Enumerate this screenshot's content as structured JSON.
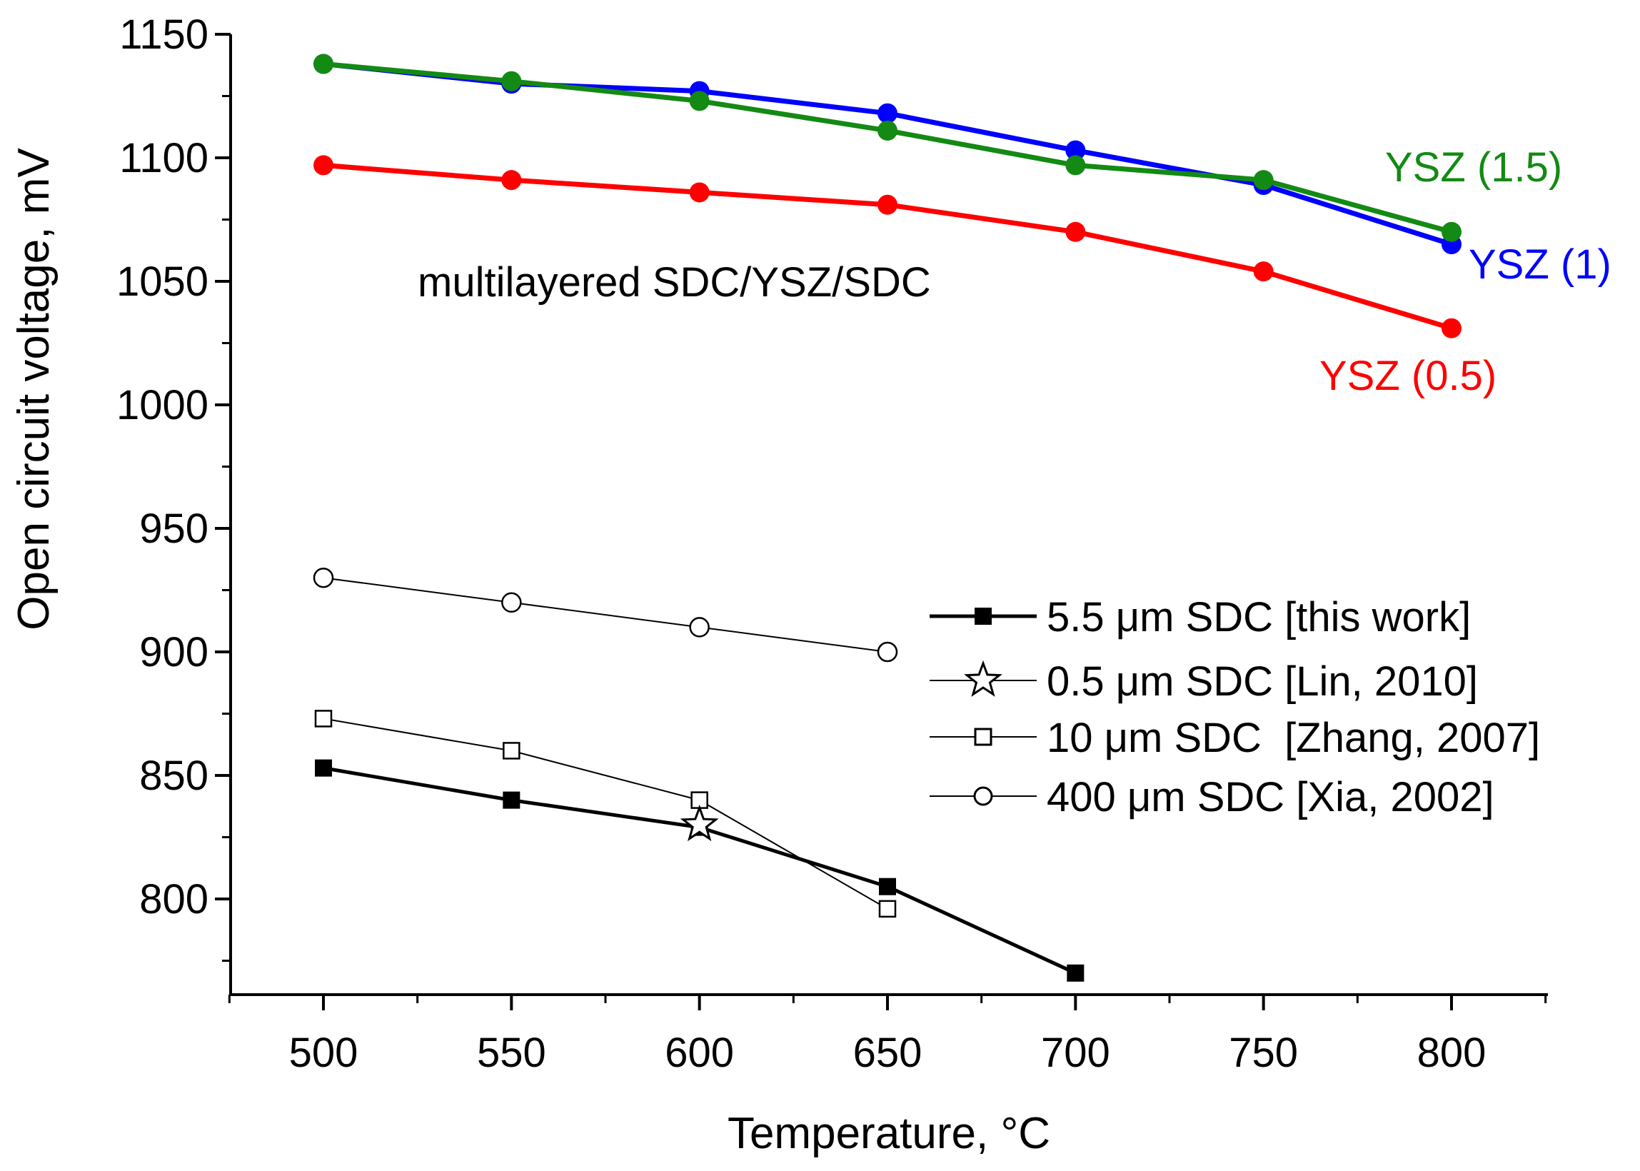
{
  "chart_data": {
    "type": "line",
    "title": "",
    "xlabel": "Temperature, °C",
    "ylabel": "Open circuit voltage, mV",
    "xlim": [
      475,
      825
    ],
    "ylim": [
      760,
      1150
    ],
    "x_ticks": [
      500,
      550,
      600,
      650,
      700,
      750,
      800
    ],
    "x_tick_labels": [
      "500",
      "550",
      "600",
      "650",
      "700",
      "750",
      "800"
    ],
    "y_ticks": [
      800,
      850,
      900,
      950,
      1000,
      1050,
      1100,
      1150
    ],
    "y_tick_labels": [
      "800",
      "850",
      "900",
      "950",
      "1000",
      "1050",
      "1100",
      "1150"
    ],
    "annotation": "multilayered SDC/YSZ/SDC",
    "series": [
      {
        "name": "YSZ (1)",
        "color": "#0000ff",
        "marker": "filled-circle",
        "x": [
          500,
          550,
          600,
          650,
          700,
          750,
          800
        ],
        "values": [
          1138,
          1130,
          1127,
          1118,
          1103,
          1089,
          1065
        ]
      },
      {
        "name": "YSZ (1.5)",
        "color": "#138a13",
        "marker": "filled-circle",
        "x": [
          500,
          550,
          600,
          650,
          700,
          750,
          800
        ],
        "values": [
          1138,
          1131,
          1123,
          1111,
          1097,
          1091,
          1070
        ]
      },
      {
        "name": "YSZ (0.5)",
        "color": "#ff0000",
        "marker": "filled-circle",
        "x": [
          500,
          550,
          600,
          650,
          700,
          750,
          800
        ],
        "values": [
          1097,
          1091,
          1086,
          1081,
          1070,
          1054,
          1031
        ]
      },
      {
        "name": "400 μm SDC [Xia, 2002]",
        "color": "#000000",
        "marker": "open-circle",
        "x": [
          500,
          550,
          600,
          650
        ],
        "values": [
          930,
          920,
          910,
          900
        ]
      },
      {
        "name": "10 μm SDC  [Zhang, 2007]",
        "color": "#000000",
        "marker": "open-square",
        "x": [
          500,
          550,
          600,
          650
        ],
        "values": [
          873,
          860,
          840,
          796
        ]
      },
      {
        "name": "5.5 μm SDC [this work]",
        "color": "#000000",
        "marker": "filled-square",
        "x": [
          500,
          550,
          600,
          650,
          700
        ],
        "values": [
          853,
          840,
          829,
          805,
          770
        ]
      },
      {
        "name": "0.5 μm SDC [Lin, 2010]",
        "color": "#000000",
        "marker": "open-star",
        "x": [
          600
        ],
        "values": [
          830
        ]
      }
    ],
    "legend": {
      "placement": "right-middle",
      "entries": [
        "5.5 μm SDC [this work]",
        "0.5 μm SDC [Lin, 2010]",
        "10 μm SDC  [Zhang, 2007]",
        "400 μm SDC [Xia, 2002]"
      ]
    },
    "series_labels": [
      "YSZ (1.5)",
      "YSZ (1)",
      "YSZ (0.5)"
    ]
  }
}
